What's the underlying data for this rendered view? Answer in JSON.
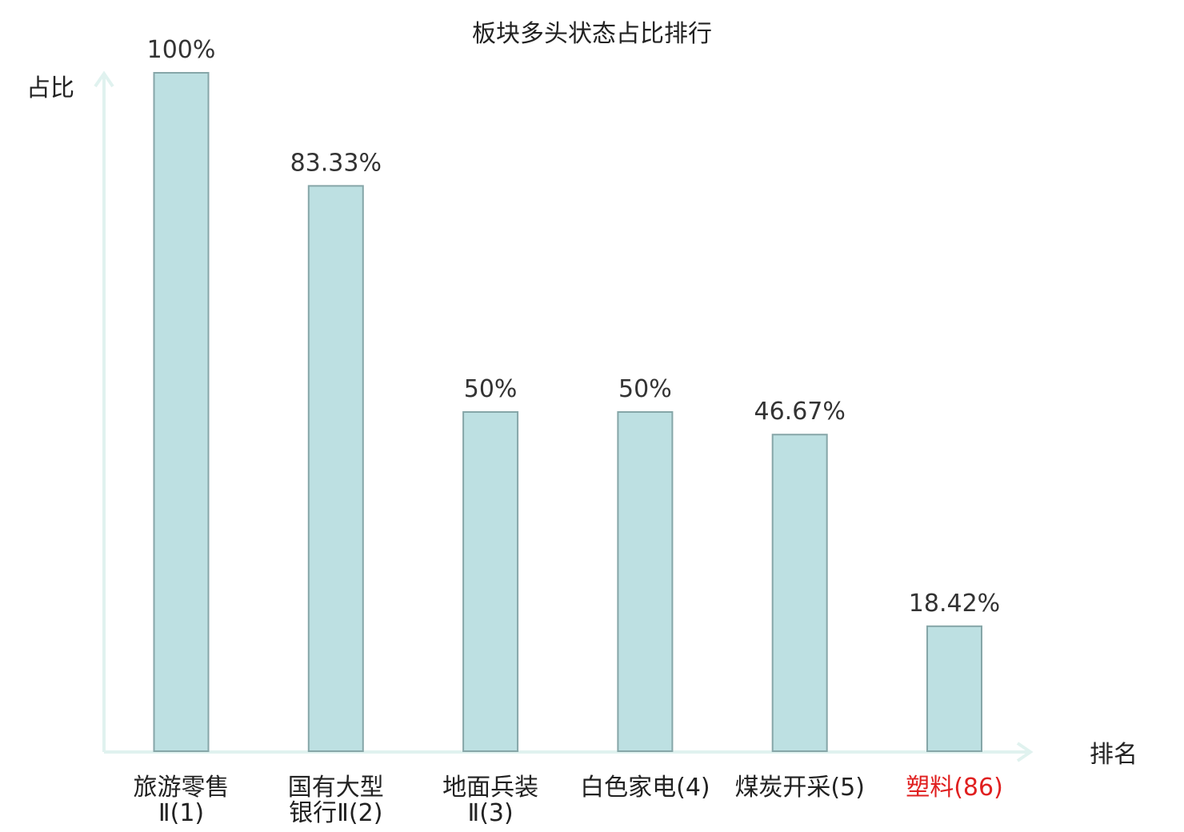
{
  "chart_data": {
    "type": "bar",
    "title": "板块多头状态占比排行",
    "ylabel": "占比",
    "xlabel": "排名",
    "ylim": [
      0,
      100
    ],
    "grid": false,
    "legend": "none",
    "categories": [
      {
        "name": [
          "旅游零售",
          "Ⅱ(1)"
        ],
        "highlight": false
      },
      {
        "name": [
          "国有大型",
          "银行Ⅱ(2)"
        ],
        "highlight": false
      },
      {
        "name": [
          "地面兵装",
          "Ⅱ(3)"
        ],
        "highlight": false
      },
      {
        "name": [
          "白色家电(4)"
        ],
        "highlight": false
      },
      {
        "name": [
          "煤炭开采(5)"
        ],
        "highlight": false
      },
      {
        "name": [
          "塑料(86)"
        ],
        "highlight": true
      }
    ],
    "values": [
      100,
      83.33,
      50,
      50,
      46.67,
      18.42
    ],
    "value_labels": [
      "100%",
      "83.33%",
      "50%",
      "50%",
      "46.67%",
      "18.42%"
    ],
    "colors": {
      "bar_fill": "#bde0e2",
      "bar_stroke": "#86a6a8",
      "axis": "#e0f2ef",
      "text": "#222222",
      "highlight_text": "#e02020"
    }
  }
}
